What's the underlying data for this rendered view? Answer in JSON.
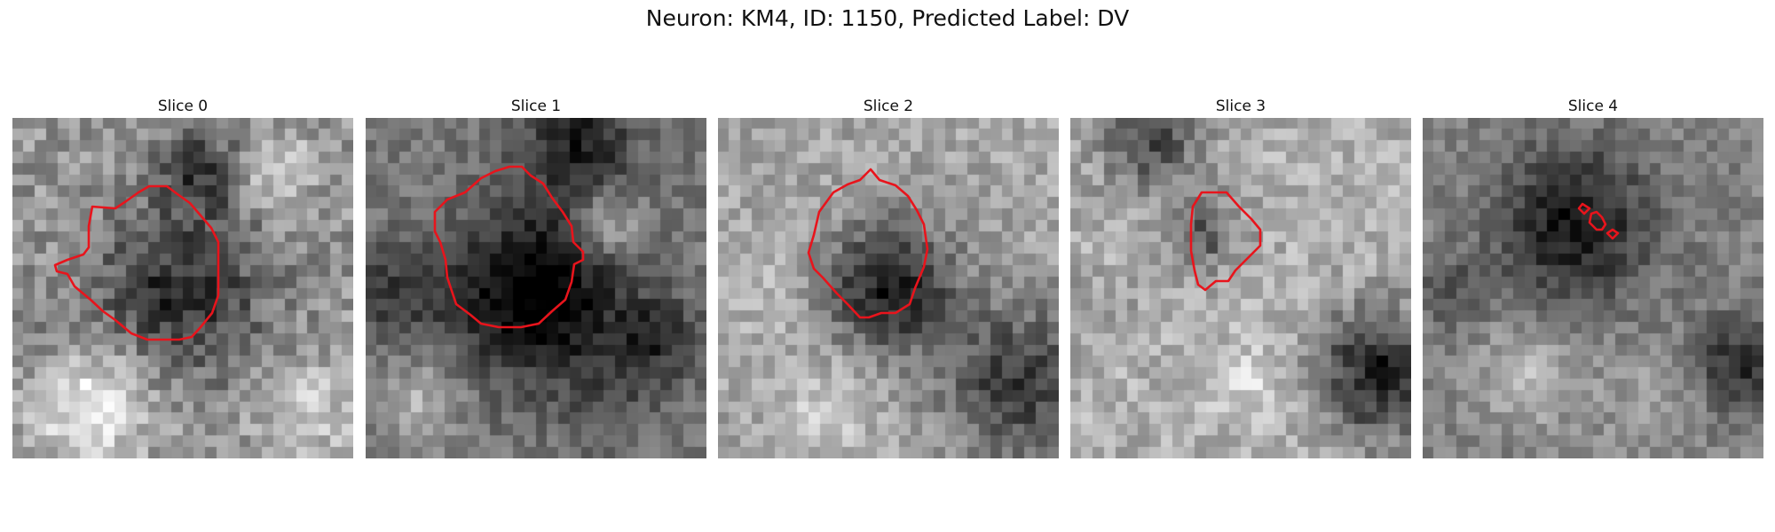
{
  "figure": {
    "title": "Neuron: KM4, ID: 1150, Predicted Label: DV"
  },
  "panels": [
    {
      "title": "Slice 0"
    },
    {
      "title": "Slice 1"
    },
    {
      "title": "Slice 2"
    },
    {
      "title": "Slice 3"
    },
    {
      "title": "Slice 4"
    }
  ],
  "colors": {
    "contour": "#e8141c",
    "background": "#ffffff"
  }
}
